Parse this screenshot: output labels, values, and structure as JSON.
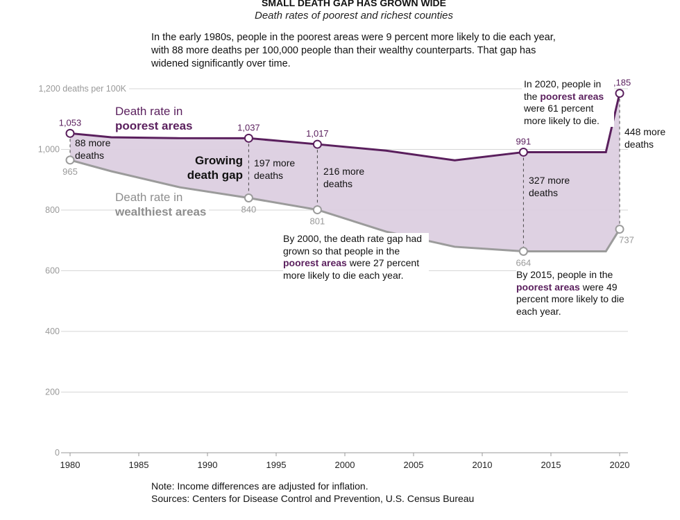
{
  "chart_data": {
    "type": "area",
    "title": "SMALL DEATH GAP HAS GROWN WIDE",
    "subtitle": "Death rates of poorest and richest counties",
    "intro": "In the early 1980s, people in the poorest areas were 9 percent more likely to die each year, with 88 more deaths per 100,000 people than their wealthy counterparts. That gap has widened significantly over time.",
    "ylim": [
      0,
      1200
    ],
    "xlim": [
      1980,
      2020
    ],
    "y_ticks": [
      0,
      200,
      400,
      600,
      800,
      1000,
      1200
    ],
    "y_tick_labels": [
      "0",
      "200",
      "400",
      "600",
      "800",
      "1,000",
      "1,200 deaths per 100K"
    ],
    "x_ticks": [
      "1980",
      "1985",
      "1990",
      "1995",
      "2000",
      "2005",
      "2010",
      "2015",
      "2020"
    ],
    "grid": true,
    "colors": {
      "poorest": "#5a1f5d",
      "wealthiest": "#9b9b9b",
      "gap": "#dccfe0"
    },
    "series": [
      {
        "name": "Death rate in poorest areas",
        "label_line1": "Death rate in",
        "label_line2": "poorest areas",
        "x": [
          1980,
          1983,
          1988,
          1993,
          1998,
          2003,
          2008,
          2013,
          2019,
          2020
        ],
        "values": [
          1053,
          1040,
          1037,
          1037,
          1017,
          996,
          964,
          991,
          991,
          1185
        ]
      },
      {
        "name": "Death rate in wealthiest areas",
        "label_line1": "Death rate in",
        "label_line2": "wealthiest areas",
        "x": [
          1980,
          1983,
          1988,
          1993,
          1998,
          2003,
          2008,
          2013,
          2019,
          2020
        ],
        "values": [
          965,
          928,
          875,
          840,
          801,
          729,
          679,
          664,
          664,
          737
        ]
      }
    ],
    "markers": [
      {
        "year": 1980,
        "poorest": 1053,
        "wealthiest": 965,
        "poorest_label": "1,053",
        "wealthiest_label": "965",
        "gap_label": "88 more deaths"
      },
      {
        "year": 1993,
        "poorest": 1037,
        "wealthiest": 840,
        "poorest_label": "1,037",
        "wealthiest_label": "840",
        "gap_label": "197 more deaths"
      },
      {
        "year": 1998,
        "poorest": 1017,
        "wealthiest": 801,
        "poorest_label": "1,017",
        "wealthiest_label": "801",
        "gap_label": "216 more deaths"
      },
      {
        "year": 2013,
        "poorest": 991,
        "wealthiest": 664,
        "poorest_label": "991",
        "wealthiest_label": "664",
        "gap_label": "327 more deaths"
      },
      {
        "year": 2020,
        "poorest": 1185,
        "wealthiest": 737,
        "poorest_label": "1,185",
        "wealthiest_label": "737",
        "gap_label": "448 more deaths"
      }
    ],
    "gap_title_line1": "Growing",
    "gap_title_line2": "death gap",
    "annotations": {
      "a2000": {
        "pre": "By 2000, the death rate gap had grown so that people in the ",
        "bold": "poorest areas",
        "post": " were 27 percent more likely to die each year."
      },
      "a2015": {
        "pre": "By 2015, people in the ",
        "bold": "poorest areas",
        "post": " were 49 percent more likely to die each year."
      },
      "a2020": {
        "pre": "In 2020, people in the ",
        "bold": "poorest areas",
        "post": " were 61 percent more likely to die."
      }
    },
    "notes": [
      "Note: Income differences are adjusted for inflation.",
      "Sources: Centers for Disease Control and Prevention, U.S. Census Bureau"
    ]
  }
}
